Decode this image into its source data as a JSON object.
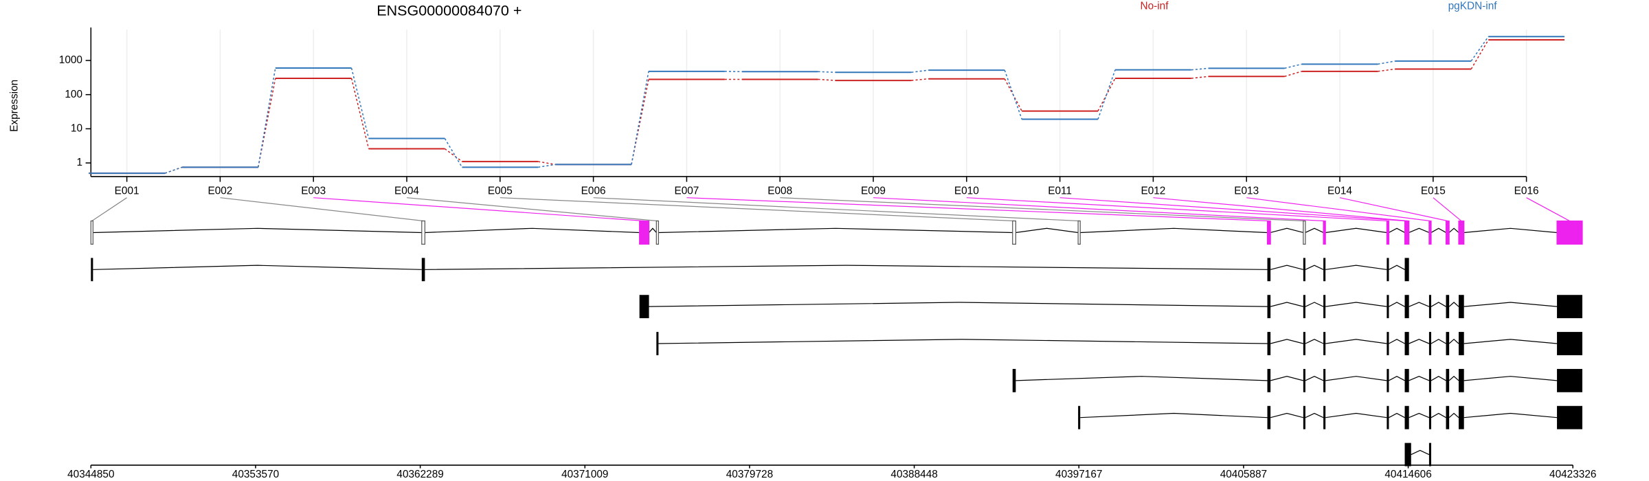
{
  "chart_data": {
    "type": "line",
    "title": "ENSG00000084070 +",
    "y_label": "Expression",
    "y_scale": "log",
    "grid": true,
    "categories": [
      "E001",
      "E002",
      "E003",
      "E004",
      "E005",
      "E006",
      "E007",
      "E008",
      "E009",
      "E010",
      "E011",
      "E012",
      "E013",
      "E014",
      "E015",
      "E016"
    ],
    "series": [
      {
        "name": "No-inf",
        "color": "#cc2222",
        "values": [
          0.5,
          0.75,
          300,
          2.6,
          1.1,
          0.9,
          280,
          280,
          260,
          290,
          33,
          300,
          340,
          480,
          560,
          4000
        ]
      },
      {
        "name": "pgKDN-inf",
        "color": "#3377bb",
        "values": [
          0.5,
          0.75,
          600,
          5.2,
          0.75,
          0.9,
          480,
          470,
          450,
          520,
          19,
          530,
          590,
          780,
          960,
          5000
        ]
      }
    ],
    "ylim": [
      0.4,
      8000
    ],
    "yticks": [
      1,
      10,
      100,
      1000
    ]
  },
  "gene_model": {
    "xlim": [
      40344850,
      40423326
    ],
    "xticks": [
      40344850,
      40353570,
      40362289,
      40371009,
      40379728,
      40388448,
      40397167,
      40405887,
      40414606,
      40423326
    ],
    "highlight_color": "#ee22ee",
    "exon_bins": [
      {
        "start": 40344850,
        "end": 40344906,
        "significant": false
      },
      {
        "start": 40362369,
        "end": 40362536,
        "significant": false
      },
      {
        "start": 40373898,
        "end": 40374402,
        "significant": true
      },
      {
        "start": 40374794,
        "end": 40374906,
        "significant": false
      },
      {
        "start": 40393656,
        "end": 40393824,
        "significant": false
      },
      {
        "start": 40397126,
        "end": 40397182,
        "significant": false
      },
      {
        "start": 40407146,
        "end": 40407314,
        "significant": true
      },
      {
        "start": 40409049,
        "end": 40409161,
        "significant": false
      },
      {
        "start": 40410113,
        "end": 40410225,
        "significant": true
      },
      {
        "start": 40413471,
        "end": 40413583,
        "significant": true
      },
      {
        "start": 40414422,
        "end": 40414534,
        "significant": true
      },
      {
        "start": 40414534,
        "end": 40414646,
        "significant": true
      },
      {
        "start": 40415710,
        "end": 40415822,
        "significant": true
      },
      {
        "start": 40416606,
        "end": 40416774,
        "significant": true
      },
      {
        "start": 40417278,
        "end": 40417558,
        "significant": true
      },
      {
        "start": 40422483,
        "end": 40423826,
        "significant": true
      }
    ],
    "transcripts": [
      [
        [
          40344850,
          40344906
        ],
        [
          40362369,
          40362536
        ],
        [
          40407146,
          40407314
        ],
        [
          40409049,
          40409161
        ],
        [
          40410113,
          40410225
        ],
        [
          40413471,
          40413583
        ],
        [
          40414422,
          40414646
        ]
      ],
      [
        [
          40373898,
          40374402
        ],
        [
          40407146,
          40407314
        ],
        [
          40409049,
          40409161
        ],
        [
          40410113,
          40410225
        ],
        [
          40413471,
          40413583
        ],
        [
          40414422,
          40414646
        ],
        [
          40415710,
          40415822
        ],
        [
          40416606,
          40416774
        ],
        [
          40417278,
          40417558
        ],
        [
          40422483,
          40423826
        ]
      ],
      [
        [
          40374794,
          40374906
        ],
        [
          40407146,
          40407314
        ],
        [
          40409049,
          40409161
        ],
        [
          40410113,
          40410225
        ],
        [
          40413471,
          40413583
        ],
        [
          40414422,
          40414646
        ],
        [
          40415710,
          40415822
        ],
        [
          40416606,
          40416774
        ],
        [
          40417278,
          40417558
        ],
        [
          40422483,
          40423826
        ]
      ],
      [
        [
          40393656,
          40393824
        ],
        [
          40407146,
          40407314
        ],
        [
          40409049,
          40409161
        ],
        [
          40410113,
          40410225
        ],
        [
          40413471,
          40413583
        ],
        [
          40414422,
          40414646
        ],
        [
          40415710,
          40415822
        ],
        [
          40416606,
          40416774
        ],
        [
          40417278,
          40417558
        ],
        [
          40422483,
          40423826
        ]
      ],
      [
        [
          40397126,
          40397182
        ],
        [
          40407146,
          40407314
        ],
        [
          40409049,
          40409161
        ],
        [
          40410113,
          40410225
        ],
        [
          40413471,
          40413583
        ],
        [
          40414422,
          40414646
        ],
        [
          40415710,
          40415822
        ],
        [
          40416606,
          40416774
        ],
        [
          40417278,
          40417558
        ],
        [
          40422483,
          40423826
        ]
      ],
      [
        [
          40414422,
          40414758
        ],
        [
          40415710,
          40415822
        ]
      ]
    ]
  }
}
